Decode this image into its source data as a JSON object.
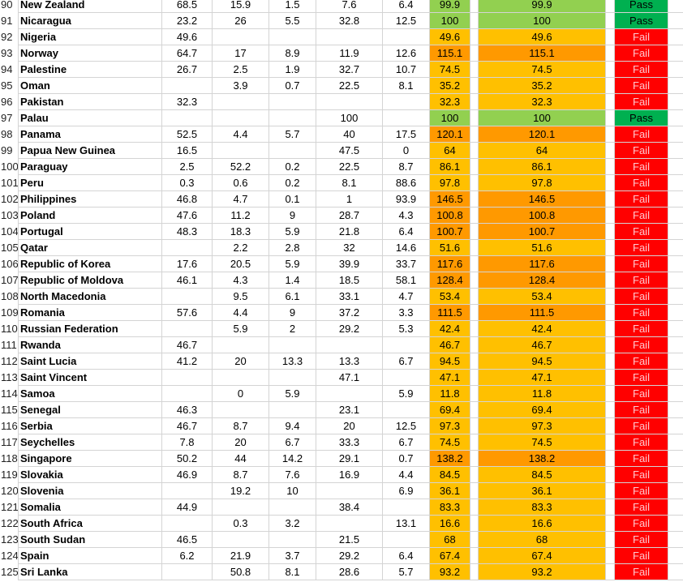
{
  "sheet": {
    "rows": [
      {
        "r": "90",
        "name": "New Zealand",
        "c1": "68.5",
        "c2": "15.9",
        "c3": "1.5",
        "c4": "7.6",
        "c5": "6.4",
        "c6": "99.9",
        "c7": "99.9",
        "status": "Pass"
      },
      {
        "r": "91",
        "name": "Nicaragua",
        "c1": "23.2",
        "c2": "26",
        "c3": "5.5",
        "c4": "32.8",
        "c5": "12.5",
        "c6": "100",
        "c7": "100",
        "status": "Pass"
      },
      {
        "r": "92",
        "name": "Nigeria",
        "c1": "49.6",
        "c2": "",
        "c3": "",
        "c4": "",
        "c5": "",
        "c6": "49.6",
        "c7": "49.6",
        "status": "Fail"
      },
      {
        "r": "93",
        "name": "Norway",
        "c1": "64.7",
        "c2": "17",
        "c3": "8.9",
        "c4": "11.9",
        "c5": "12.6",
        "c6": "115.1",
        "c7": "115.1",
        "status": "Fail"
      },
      {
        "r": "94",
        "name": "Palestine",
        "c1": "26.7",
        "c2": "2.5",
        "c3": "1.9",
        "c4": "32.7",
        "c5": "10.7",
        "c6": "74.5",
        "c7": "74.5",
        "status": "Fail"
      },
      {
        "r": "95",
        "name": "Oman",
        "c1": "",
        "c2": "3.9",
        "c3": "0.7",
        "c4": "22.5",
        "c5": "8.1",
        "c6": "35.2",
        "c7": "35.2",
        "status": "Fail"
      },
      {
        "r": "96",
        "name": "Pakistan",
        "c1": "32.3",
        "c2": "",
        "c3": "",
        "c4": "",
        "c5": "",
        "c6": "32.3",
        "c7": "32.3",
        "status": "Fail"
      },
      {
        "r": "97",
        "name": "Palau",
        "c1": "",
        "c2": "",
        "c3": "",
        "c4": "100",
        "c5": "",
        "c6": "100",
        "c7": "100",
        "status": "Pass"
      },
      {
        "r": "98",
        "name": "Panama",
        "c1": "52.5",
        "c2": "4.4",
        "c3": "5.7",
        "c4": "40",
        "c5": "17.5",
        "c6": "120.1",
        "c7": "120.1",
        "status": "Fail"
      },
      {
        "r": "99",
        "name": "Papua New Guinea",
        "c1": "16.5",
        "c2": "",
        "c3": "",
        "c4": "47.5",
        "c5": "0",
        "c6": "64",
        "c7": "64",
        "status": "Fail"
      },
      {
        "r": "100",
        "name": "Paraguay",
        "c1": "2.5",
        "c2": "52.2",
        "c3": "0.2",
        "c4": "22.5",
        "c5": "8.7",
        "c6": "86.1",
        "c7": "86.1",
        "status": "Fail"
      },
      {
        "r": "101",
        "name": "Peru",
        "c1": "0.3",
        "c2": "0.6",
        "c3": "0.2",
        "c4": "8.1",
        "c5": "88.6",
        "c6": "97.8",
        "c7": "97.8",
        "status": "Fail"
      },
      {
        "r": "102",
        "name": "Philippines",
        "c1": "46.8",
        "c2": "4.7",
        "c3": "0.1",
        "c4": "1",
        "c5": "93.9",
        "c6": "146.5",
        "c7": "146.5",
        "status": "Fail"
      },
      {
        "r": "103",
        "name": "Poland",
        "c1": "47.6",
        "c2": "11.2",
        "c3": "9",
        "c4": "28.7",
        "c5": "4.3",
        "c6": "100.8",
        "c7": "100.8",
        "status": "Fail"
      },
      {
        "r": "104",
        "name": "Portugal",
        "c1": "48.3",
        "c2": "18.3",
        "c3": "5.9",
        "c4": "21.8",
        "c5": "6.4",
        "c6": "100.7",
        "c7": "100.7",
        "status": "Fail"
      },
      {
        "r": "105",
        "name": "Qatar",
        "c1": "",
        "c2": "2.2",
        "c3": "2.8",
        "c4": "32",
        "c5": "14.6",
        "c6": "51.6",
        "c7": "51.6",
        "status": "Fail"
      },
      {
        "r": "106",
        "name": "Republic of Korea",
        "c1": "17.6",
        "c2": "20.5",
        "c3": "5.9",
        "c4": "39.9",
        "c5": "33.7",
        "c6": "117.6",
        "c7": "117.6",
        "status": "Fail"
      },
      {
        "r": "107",
        "name": "Republic of Moldova",
        "c1": "46.1",
        "c2": "4.3",
        "c3": "1.4",
        "c4": "18.5",
        "c5": "58.1",
        "c6": "128.4",
        "c7": "128.4",
        "status": "Fail"
      },
      {
        "r": "108",
        "name": "North Macedonia",
        "c1": "",
        "c2": "9.5",
        "c3": "6.1",
        "c4": "33.1",
        "c5": "4.7",
        "c6": "53.4",
        "c7": "53.4",
        "status": "Fail"
      },
      {
        "r": "109",
        "name": "Romania",
        "c1": "57.6",
        "c2": "4.4",
        "c3": "9",
        "c4": "37.2",
        "c5": "3.3",
        "c6": "111.5",
        "c7": "111.5",
        "status": "Fail"
      },
      {
        "r": "110",
        "name": "Russian Federation",
        "c1": "",
        "c2": "5.9",
        "c3": "2",
        "c4": "29.2",
        "c5": "5.3",
        "c6": "42.4",
        "c7": "42.4",
        "status": "Fail"
      },
      {
        "r": "111",
        "name": "Rwanda",
        "c1": "46.7",
        "c2": "",
        "c3": "",
        "c4": "",
        "c5": "",
        "c6": "46.7",
        "c7": "46.7",
        "status": "Fail"
      },
      {
        "r": "112",
        "name": "Saint Lucia",
        "c1": "41.2",
        "c2": "20",
        "c3": "13.3",
        "c4": "13.3",
        "c5": "6.7",
        "c6": "94.5",
        "c7": "94.5",
        "status": "Fail"
      },
      {
        "r": "113",
        "name": "Saint Vincent",
        "c1": "",
        "c2": "",
        "c3": "",
        "c4": "47.1",
        "c5": "",
        "c6": "47.1",
        "c7": "47.1",
        "status": "Fail"
      },
      {
        "r": "114",
        "name": "Samoa",
        "c1": "",
        "c2": "0",
        "c3": "5.9",
        "c4": "",
        "c5": "5.9",
        "c6": "11.8",
        "c7": "11.8",
        "status": "Fail"
      },
      {
        "r": "115",
        "name": "Senegal",
        "c1": "46.3",
        "c2": "",
        "c3": "",
        "c4": "23.1",
        "c5": "",
        "c6": "69.4",
        "c7": "69.4",
        "status": "Fail"
      },
      {
        "r": "116",
        "name": "Serbia",
        "c1": "46.7",
        "c2": "8.7",
        "c3": "9.4",
        "c4": "20",
        "c5": "12.5",
        "c6": "97.3",
        "c7": "97.3",
        "status": "Fail"
      },
      {
        "r": "117",
        "name": "Seychelles",
        "c1": "7.8",
        "c2": "20",
        "c3": "6.7",
        "c4": "33.3",
        "c5": "6.7",
        "c6": "74.5",
        "c7": "74.5",
        "status": "Fail"
      },
      {
        "r": "118",
        "name": "Singapore",
        "c1": "50.2",
        "c2": "44",
        "c3": "14.2",
        "c4": "29.1",
        "c5": "0.7",
        "c6": "138.2",
        "c7": "138.2",
        "status": "Fail"
      },
      {
        "r": "119",
        "name": "Slovakia",
        "c1": "46.9",
        "c2": "8.7",
        "c3": "7.6",
        "c4": "16.9",
        "c5": "4.4",
        "c6": "84.5",
        "c7": "84.5",
        "status": "Fail"
      },
      {
        "r": "120",
        "name": "Slovenia",
        "c1": "",
        "c2": "19.2",
        "c3": "10",
        "c4": "",
        "c5": "6.9",
        "c6": "36.1",
        "c7": "36.1",
        "status": "Fail"
      },
      {
        "r": "121",
        "name": "Somalia",
        "c1": "44.9",
        "c2": "",
        "c3": "",
        "c4": "38.4",
        "c5": "",
        "c6": "83.3",
        "c7": "83.3",
        "status": "Fail"
      },
      {
        "r": "122",
        "name": "South Africa",
        "c1": "",
        "c2": "0.3",
        "c3": "3.2",
        "c4": "",
        "c5": "13.1",
        "c6": "16.6",
        "c7": "16.6",
        "status": "Fail"
      },
      {
        "r": "123",
        "name": "South Sudan",
        "c1": "46.5",
        "c2": "",
        "c3": "",
        "c4": "21.5",
        "c5": "",
        "c6": "68",
        "c7": "68",
        "status": "Fail"
      },
      {
        "r": "124",
        "name": "Spain",
        "c1": "6.2",
        "c2": "21.9",
        "c3": "3.7",
        "c4": "29.2",
        "c5": "6.4",
        "c6": "67.4",
        "c7": "67.4",
        "status": "Fail"
      },
      {
        "r": "125",
        "name": "Sri Lanka",
        "c1": "",
        "c2": "50.8",
        "c3": "8.1",
        "c4": "28.6",
        "c5": "5.7",
        "c6": "93.2",
        "c7": "93.2",
        "status": "Fail"
      }
    ]
  },
  "colors": {
    "total_near_100": "#92d050",
    "total_low": "#ffc000",
    "total_high": "#ff9900",
    "status_pass": "#00b050",
    "status_fail": "#ff0000"
  }
}
